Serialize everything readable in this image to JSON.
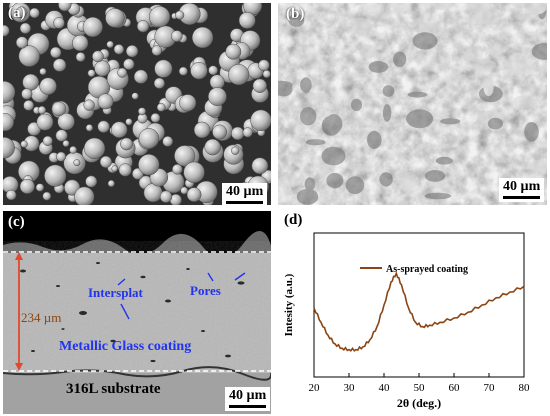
{
  "panels": {
    "a": {
      "label": "(a)",
      "scale": "40 µm"
    },
    "b": {
      "label": "(b)",
      "scale": "40 µm"
    },
    "c": {
      "label": "(c)",
      "scale": "40 µm",
      "annotations": {
        "intersplat": "Intersplat",
        "pores": "Pores",
        "coating": "Metallic Glass coating",
        "thickness": "234 µm",
        "substrate": "316L substrate"
      }
    },
    "d": {
      "label": "(d)"
    }
  },
  "chart_data": {
    "type": "line",
    "xlabel": "2θ (deg.)",
    "ylabel": "Intesity (a.u.)",
    "xlim": [
      20,
      80
    ],
    "xticks": [
      20,
      30,
      40,
      50,
      60,
      70,
      80
    ],
    "series": [
      {
        "name": "As-sprayed coating",
        "color": "#8B4513",
        "x": [
          20,
          22,
          24,
          26,
          28,
          30,
          32,
          34,
          36,
          38,
          40,
          42,
          43.5,
          45,
          47,
          49,
          51,
          53,
          56,
          60,
          64,
          68,
          72,
          76,
          80
        ],
        "y": [
          0.48,
          0.38,
          0.29,
          0.23,
          0.2,
          0.19,
          0.19,
          0.21,
          0.26,
          0.35,
          0.5,
          0.66,
          0.72,
          0.64,
          0.48,
          0.38,
          0.35,
          0.36,
          0.38,
          0.41,
          0.45,
          0.5,
          0.55,
          0.59,
          0.63
        ]
      }
    ],
    "legend_position": "top-center",
    "grid": false
  }
}
